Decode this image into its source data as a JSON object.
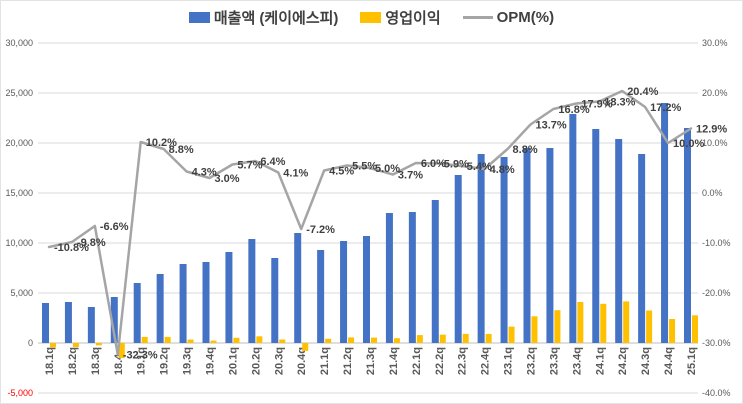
{
  "legend": {
    "items": [
      {
        "label": "매출액 (케이에스피)",
        "color": "#4472C4",
        "marker": "bar"
      },
      {
        "label": "영업이익",
        "color": "#FFC000",
        "marker": "bar"
      },
      {
        "label": "OPM(%)",
        "color": "#A5A5A5",
        "marker": "line"
      }
    ]
  },
  "chart_data": {
    "type": "combo-bar-line",
    "categories": [
      "18.1q",
      "18.2q",
      "18.3q",
      "18.4q",
      "19.1q",
      "19.2q",
      "19.3q",
      "19.4q",
      "20.1q",
      "20.2q",
      "20.3q",
      "20.4q",
      "21.1q",
      "21.2q",
      "21.3q",
      "21.4q",
      "22.1q",
      "22.2q",
      "22.3q",
      "22.4q",
      "23.1q",
      "23.2q",
      "23.3q",
      "23.4q",
      "24.1q",
      "24.2q",
      "24.3q",
      "24.4q",
      "25.1q"
    ],
    "series": [
      {
        "name": "매출액 (케이에스피)",
        "type": "bar",
        "axis": "left",
        "color": "#4472C4",
        "values": [
          4000,
          4100,
          3600,
          4600,
          6000,
          6900,
          7900,
          8100,
          9100,
          10400,
          8500,
          11000,
          9300,
          10200,
          10700,
          13000,
          13100,
          14300,
          16800,
          18900,
          18600,
          19500,
          19500,
          22900,
          21400,
          20400,
          18900,
          24000,
          21500
        ]
      },
      {
        "name": "영업이익",
        "type": "bar",
        "axis": "left",
        "color": "#FFC000",
        "values": [
          -430,
          -400,
          -240,
          -1490,
          610,
          610,
          340,
          240,
          520,
          670,
          350,
          -790,
          420,
          560,
          540,
          480,
          790,
          840,
          910,
          910,
          1640,
          2670,
          3280,
          4100,
          3920,
          4160,
          3250,
          2400,
          2770
        ]
      },
      {
        "name": "OPM(%)",
        "type": "line",
        "axis": "right",
        "color": "#A5A5A5",
        "values": [
          -10.8,
          -9.8,
          -6.6,
          -32.3,
          10.2,
          8.8,
          4.3,
          3.0,
          5.7,
          6.4,
          4.1,
          -7.2,
          4.5,
          5.5,
          5.0,
          3.7,
          6.0,
          5.9,
          5.4,
          4.8,
          8.8,
          13.7,
          16.8,
          17.9,
          18.3,
          20.4,
          17.2,
          10.0,
          12.9
        ],
        "data_labels": [
          "-10.8%",
          "-9.8%",
          "-6.6%",
          "-32.3%",
          "10.2%",
          "8.8%",
          "4.3%",
          "3.0%",
          "5.7%",
          "6.4%",
          "4.1%",
          "-7.2%",
          "4.5%",
          "5.5%",
          "5.0%",
          "3.7%",
          "6.0%",
          "5.9%",
          "5.4%",
          "4.8%",
          "8.8%",
          "13.7%",
          "16.8%",
          "17.9%",
          "18.3%",
          "20.4%",
          "17.2%",
          "10.0%",
          "12.9%"
        ]
      }
    ],
    "left_axis": {
      "min": -5000,
      "max": 30000,
      "step": 5000,
      "tick_labels": [
        "-5,000",
        "0",
        "5,000",
        "10,000",
        "15,000",
        "20,000",
        "25,000",
        "30,000"
      ],
      "negative_tick_color": "#FF0000"
    },
    "right_axis": {
      "min": -40,
      "max": 30,
      "step": 10,
      "tick_labels": [
        "-40.0%",
        "-30.0%",
        "-20.0%",
        "-10.0%",
        "0.0%",
        "10.0%",
        "20.0%",
        "30.0%"
      ]
    },
    "grid": true,
    "legend_position": "top",
    "title": ""
  },
  "colors": {
    "gridline": "#D9D9D9",
    "axis_line": "#BFBFBF",
    "tick_text": "#595959",
    "data_label_text": "#404040",
    "background": "#FFFFFF"
  }
}
